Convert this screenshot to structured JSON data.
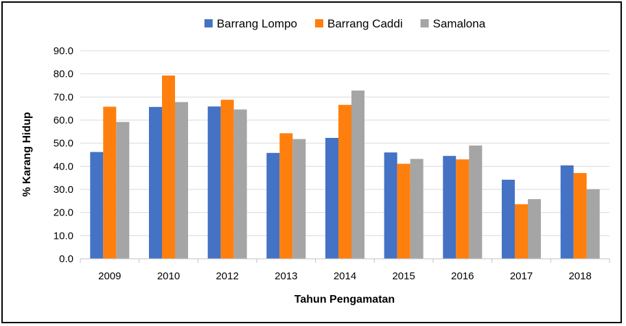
{
  "chart_data": {
    "type": "bar",
    "title": "",
    "xlabel": "Tahun Pengamatan",
    "ylabel": "% Karang Hidup",
    "categories": [
      "2009",
      "2010",
      "2012",
      "2013",
      "2014",
      "2015",
      "2016",
      "2017",
      "2018"
    ],
    "series": [
      {
        "name": "Barrang Lompo",
        "color": "#4472C4",
        "values": [
          46.2,
          65.7,
          65.9,
          45.8,
          52.3,
          46.0,
          44.5,
          34.2,
          40.4
        ]
      },
      {
        "name": "Barrang Caddi",
        "color": "#FF7F0E",
        "values": [
          65.8,
          79.3,
          68.8,
          54.3,
          66.6,
          41.1,
          43.0,
          23.6,
          37.1
        ]
      },
      {
        "name": "Samalona",
        "color": "#A5A5A5",
        "values": [
          59.2,
          67.8,
          64.6,
          51.8,
          72.8,
          43.2,
          49.0,
          25.8,
          30.1
        ]
      }
    ],
    "ylim": [
      0,
      90
    ],
    "yticks": [
      "0.0",
      "10.0",
      "20.0",
      "30.0",
      "40.0",
      "50.0",
      "60.0",
      "70.0",
      "80.0",
      "90.0"
    ],
    "grid": true,
    "legend": "top-center"
  }
}
